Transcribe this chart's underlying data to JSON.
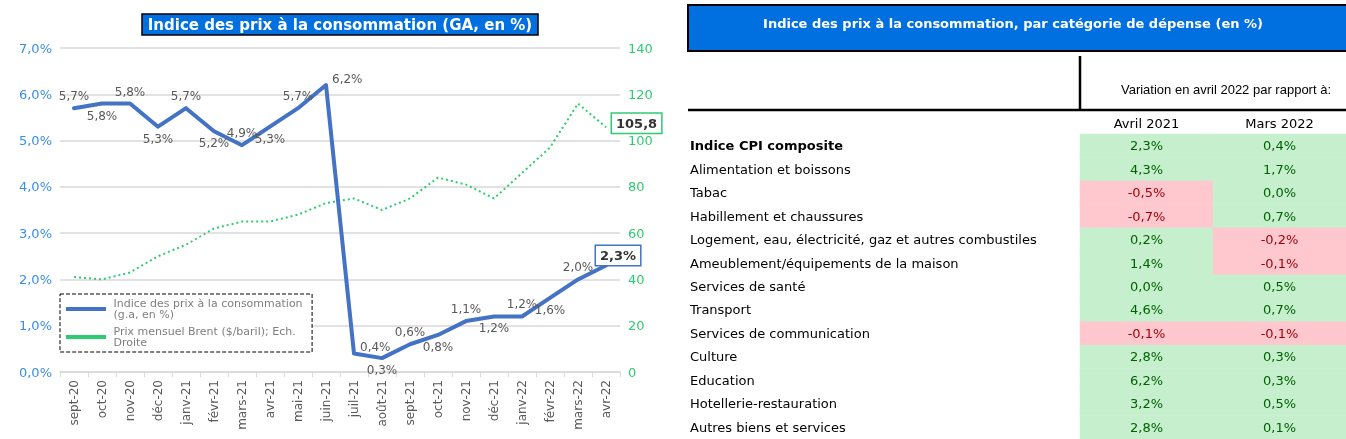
{
  "chart_data": [
    {
      "type": "line",
      "title": "Indice des prix à la consommation (GA, en %)",
      "categories": [
        "sept-20",
        "oct-20",
        "nov-20",
        "déc-20",
        "janv-21",
        "févr-21",
        "mars-21",
        "avr-21",
        "mai-21",
        "juin-21",
        "juil-21",
        "août-21",
        "sept-21",
        "oct-21",
        "nov-21",
        "déc-21",
        "janv-22",
        "févr-22",
        "mars-22",
        "avr-22"
      ],
      "series": [
        {
          "name": "Indice des prix à la consommation (g.a, en %)",
          "color": "#4472c4",
          "line_style": "solid",
          "values": [
            5.7,
            5.8,
            5.8,
            5.3,
            5.7,
            5.2,
            4.9,
            5.3,
            5.7,
            6.2,
            0.4,
            0.3,
            0.6,
            0.8,
            1.1,
            1.2,
            1.2,
            1.6,
            2.0,
            2.3
          ],
          "value_labels": [
            "5,7%",
            "5,8%",
            "5,8%",
            "5,3%",
            "5,7%",
            "5,2%",
            "4,9%",
            "5,3%",
            "5,7%",
            "6,2%",
            "0,4%",
            "0,3%",
            "0,6%",
            "0,8%",
            "1,1%",
            "1,2%",
            "1,2%",
            "1,6%",
            "2,0%",
            "2,3%"
          ]
        },
        {
          "name": "Prix mensuel Brent ($/baril); Ech. Droite",
          "color": "#2ecc71",
          "line_style": "dotted",
          "axis": "y2",
          "values": [
            41,
            40,
            43,
            50,
            55,
            62,
            65,
            65,
            68,
            73,
            75,
            70,
            75,
            84,
            81,
            75,
            86,
            97,
            116,
            105.8
          ],
          "value_labels": [
            null,
            null,
            null,
            null,
            null,
            null,
            null,
            null,
            null,
            null,
            null,
            null,
            null,
            null,
            null,
            null,
            null,
            null,
            null,
            "105,8"
          ]
        }
      ],
      "ylim": [
        0,
        7
      ],
      "yticks": [
        {
          "value": 0,
          "label": "0,0%"
        },
        {
          "value": 1,
          "label": "1,0%"
        },
        {
          "value": 2,
          "label": "2,0%"
        },
        {
          "value": 3,
          "label": "3,0%"
        },
        {
          "value": 4,
          "label": "4,0%"
        },
        {
          "value": 5,
          "label": "5,0%"
        },
        {
          "value": 6,
          "label": "6,0%"
        },
        {
          "value": 7,
          "label": "7,0%"
        }
      ],
      "y2lim": [
        0,
        140
      ],
      "y2ticks": [
        0,
        20,
        40,
        60,
        80,
        100,
        120,
        140
      ],
      "grid": "y",
      "legend": "bottom left",
      "marker": "none"
    },
    {
      "type": "heatmap",
      "title": "Indice des prix à la consommation, par catégorie de dépense (en %)",
      "subtitle": "Variation en avril 2022 par rapport à:",
      "categories": [
        "Avril 2021",
        "Mars 2022"
      ],
      "y_categories": [
        "Indice CPI composite",
        "Alimentation et boissons",
        "Tabac",
        "Habillement et chaussures",
        "Logement, eau, électricité, gaz et autres combustiles",
        "Ameublement/équipements de la maison",
        "Services de santé",
        "Transport",
        "Services de communication",
        "Culture",
        "Education",
        "Hotellerie-restauration",
        "Autres biens et services"
      ],
      "cells": [
        [
          2.3,
          0.4
        ],
        [
          4.3,
          1.7
        ],
        [
          -0.5,
          0.0
        ],
        [
          -0.7,
          0.7
        ],
        [
          0.2,
          -0.2
        ],
        [
          1.4,
          -0.1
        ],
        [
          0.0,
          0.5
        ],
        [
          4.6,
          0.7
        ],
        [
          -0.1,
          -0.1
        ],
        [
          2.8,
          0.3
        ],
        [
          6.2,
          0.3
        ],
        [
          3.2,
          0.5
        ],
        [
          2.8,
          0.1
        ]
      ],
      "cell_labels": [
        [
          "2,3%",
          "0,4%"
        ],
        [
          "4,3%",
          "1,7%"
        ],
        [
          "-0,5%",
          "0,0%"
        ],
        [
          "-0,7%",
          "0,7%"
        ],
        [
          "0,2%",
          "-0,2%"
        ],
        [
          "1,4%",
          "-0,1%"
        ],
        [
          "0,0%",
          "0,5%"
        ],
        [
          "4,6%",
          "0,7%"
        ],
        [
          "-0,1%",
          "-0,1%"
        ],
        [
          "2,8%",
          "0,3%"
        ],
        [
          "6,2%",
          "0,3%"
        ],
        [
          "3,2%",
          "0,5%"
        ],
        [
          "2,8%",
          "0,1%"
        ]
      ],
      "colors": [
        "#ffc7ce",
        "#c6efce"
      ]
    }
  ]
}
